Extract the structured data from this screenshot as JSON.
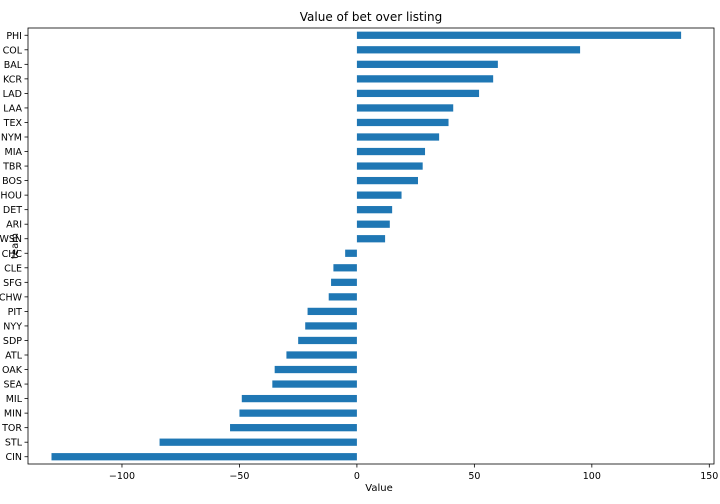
{
  "chart_data": {
    "type": "bar",
    "orientation": "horizontal",
    "title": "Value of bet over listing",
    "xlabel": "Value",
    "ylabel": "team",
    "xlim": [
      -140,
      152
    ],
    "xticks": [
      -100,
      -50,
      0,
      50,
      100,
      150
    ],
    "xtick_labels": [
      "−100",
      "−50",
      "0",
      "50",
      "100",
      "150"
    ],
    "grid": false,
    "bar_color": "#1f77b4",
    "categories": [
      "PHI",
      "COL",
      "BAL",
      "KCR",
      "LAD",
      "LAA",
      "TEX",
      "NYM",
      "MIA",
      "TBR",
      "BOS",
      "HOU",
      "DET",
      "ARI",
      "WSN",
      "CHC",
      "CLE",
      "SFG",
      "CHW",
      "PIT",
      "NYY",
      "SDP",
      "ATL",
      "OAK",
      "SEA",
      "MIL",
      "MIN",
      "TOR",
      "STL",
      "CIN"
    ],
    "values": [
      138,
      95,
      60,
      58,
      52,
      41,
      39,
      35,
      29,
      28,
      26,
      19,
      15,
      14,
      12,
      -5,
      -10,
      -11,
      -12,
      -21,
      -22,
      -25,
      -30,
      -35,
      -36,
      -49,
      -50,
      -54,
      -84,
      -130
    ]
  }
}
